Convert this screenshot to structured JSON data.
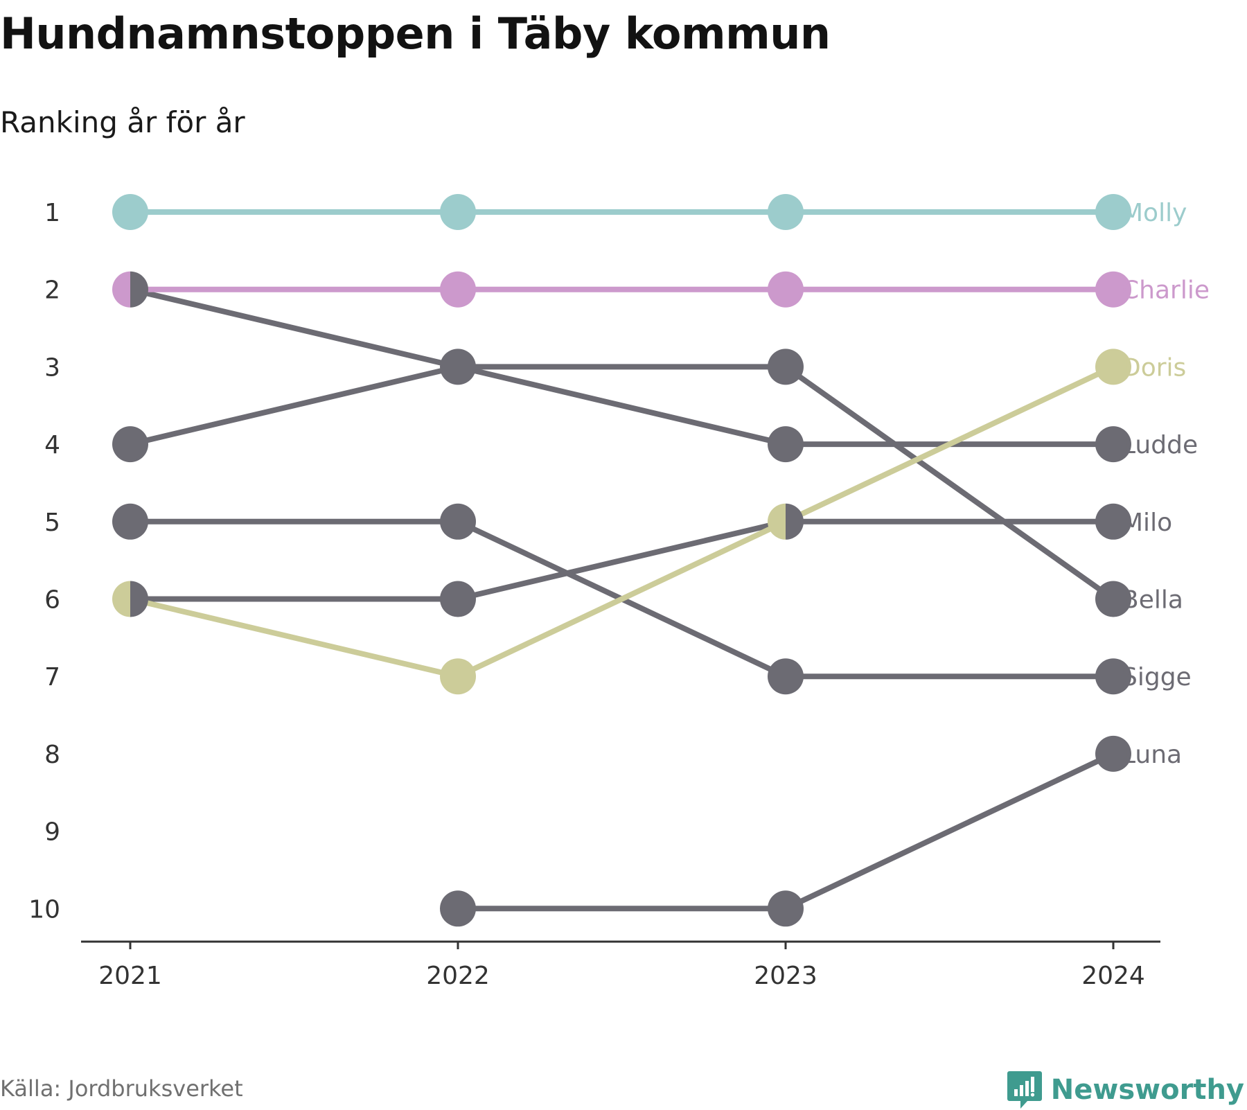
{
  "title": "Hundnamnstoppen i Täby kommun",
  "subtitle": "Ranking år för år",
  "source": "Källa: Jordbruksverket",
  "brand": {
    "name": "Newsworthy",
    "color": "#3f9b8f",
    "icon": "bar-chart-speech-bubble-icon"
  },
  "chart_data": {
    "type": "line",
    "chart_kind": "bump",
    "x": [
      "2021",
      "2022",
      "2023",
      "2024"
    ],
    "y_ticks": [
      "1",
      "2",
      "3",
      "4",
      "5",
      "6",
      "7",
      "8",
      "9",
      "10"
    ],
    "ylim": [
      1,
      10
    ],
    "y_inverted": true,
    "grid": false,
    "series": [
      {
        "name": "Molly",
        "color": "#9ccccc",
        "values": [
          1,
          1,
          1,
          1
        ]
      },
      {
        "name": "Charlie",
        "color": "#cc99cc",
        "values": [
          2,
          2,
          2,
          2
        ]
      },
      {
        "name": "Doris",
        "color": "#cccc99",
        "values": [
          6,
          7,
          5,
          3
        ]
      },
      {
        "name": "Ludde",
        "color": "#6c6b73",
        "values": [
          2,
          3,
          4,
          4
        ]
      },
      {
        "name": "Milo",
        "color": "#6c6b73",
        "values": [
          6,
          6,
          5,
          5
        ]
      },
      {
        "name": "Bella",
        "color": "#6c6b73",
        "values": [
          4,
          3,
          3,
          6
        ]
      },
      {
        "name": "Sigge",
        "color": "#6c6b73",
        "values": [
          5,
          5,
          7,
          7
        ]
      },
      {
        "name": "Luna",
        "color": "#6c6b73",
        "values": [
          null,
          10,
          10,
          8
        ]
      }
    ]
  }
}
